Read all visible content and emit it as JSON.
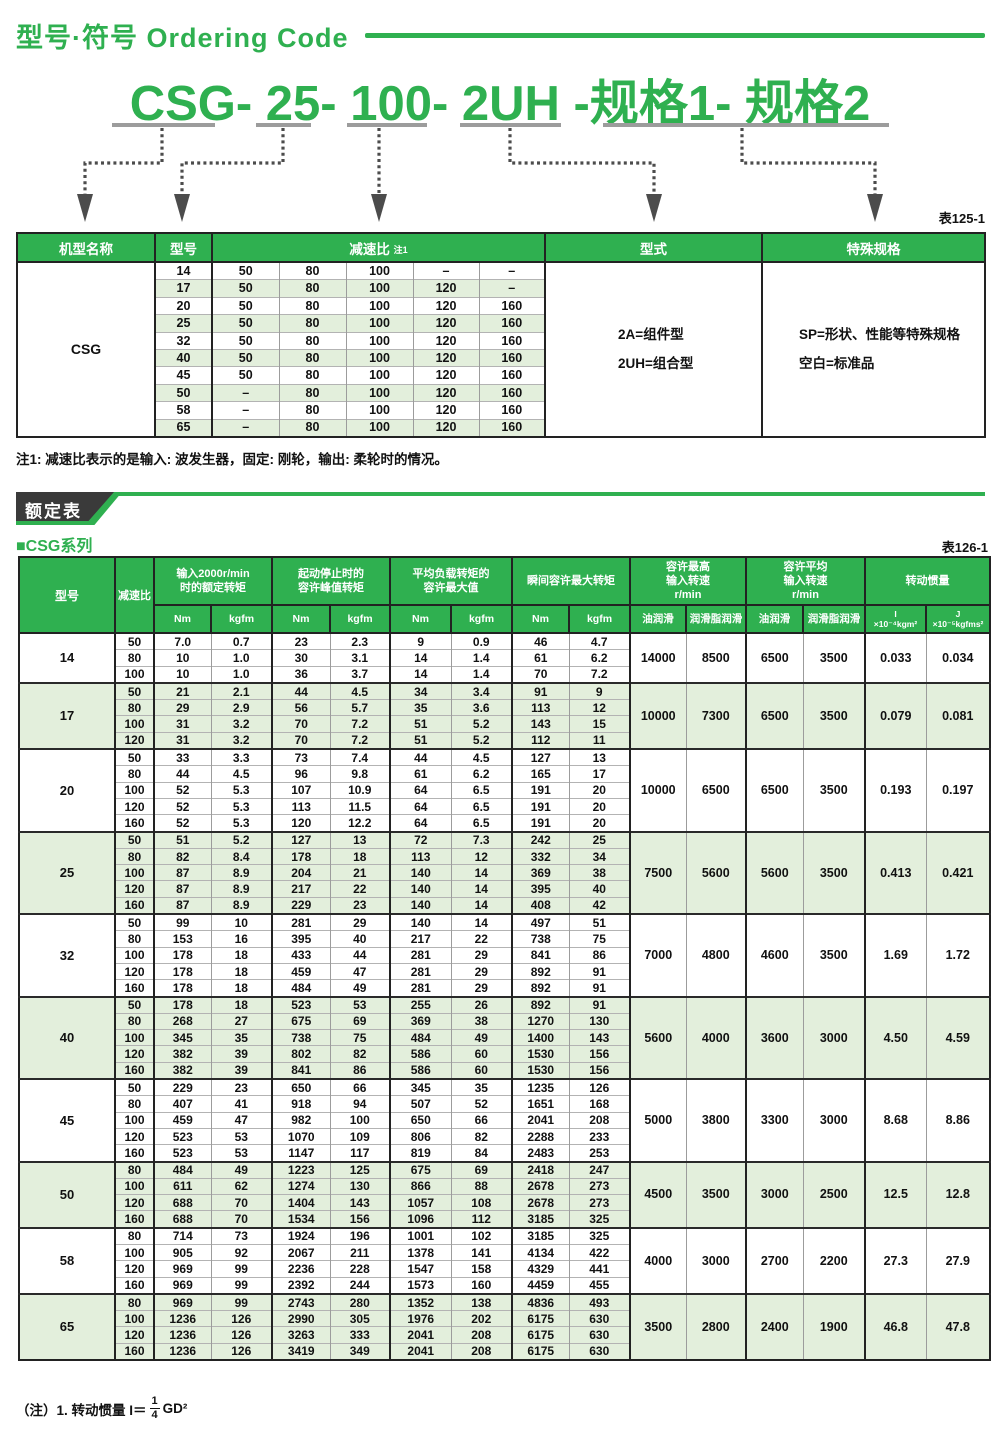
{
  "page": {
    "title_cn": "型号·符号",
    "title_en": "Ordering Code",
    "code": "CSG- 25- 100- 2UH -规格1- 规格2",
    "table1_label": "表125-1",
    "note1": "注1: 减速比表示的是输入: 波发生器，固定: 刚轮，输出: 柔轮时的情况。",
    "section_title": "额定表",
    "series_title": "■CSG系列",
    "table2_label": "表126-1"
  },
  "ordering_table": {
    "headers": {
      "maker": "机型名称",
      "model": "型号",
      "ratio": "减速比",
      "ratio_note": "注1",
      "type": "型式",
      "special": "特殊规格"
    },
    "maker": "CSG",
    "type_lines": [
      "2A=组件型",
      "2UH=组合型"
    ],
    "special_lines": [
      "SP=形状、性能等特殊规格",
      "空白=标准品"
    ],
    "rows": [
      {
        "model": "14",
        "ratios": [
          "50",
          "80",
          "100",
          "–",
          "–"
        ]
      },
      {
        "model": "17",
        "ratios": [
          "50",
          "80",
          "100",
          "120",
          "–"
        ]
      },
      {
        "model": "20",
        "ratios": [
          "50",
          "80",
          "100",
          "120",
          "160"
        ]
      },
      {
        "model": "25",
        "ratios": [
          "50",
          "80",
          "100",
          "120",
          "160"
        ]
      },
      {
        "model": "32",
        "ratios": [
          "50",
          "80",
          "100",
          "120",
          "160"
        ]
      },
      {
        "model": "40",
        "ratios": [
          "50",
          "80",
          "100",
          "120",
          "160"
        ]
      },
      {
        "model": "45",
        "ratios": [
          "50",
          "80",
          "100",
          "120",
          "160"
        ]
      },
      {
        "model": "50",
        "ratios": [
          "–",
          "80",
          "100",
          "120",
          "160"
        ]
      },
      {
        "model": "58",
        "ratios": [
          "–",
          "80",
          "100",
          "120",
          "160"
        ]
      },
      {
        "model": "65",
        "ratios": [
          "–",
          "80",
          "100",
          "120",
          "160"
        ]
      }
    ]
  },
  "rating_table": {
    "col_model": "型号",
    "col_ratio": "减速比",
    "groups": [
      {
        "title": "输入2000r/min\n时的额定转矩",
        "units": [
          "Nm",
          "kgfm"
        ]
      },
      {
        "title": "起动停止时的\n容许峰值转矩",
        "units": [
          "Nm",
          "kgfm"
        ]
      },
      {
        "title": "平均负载转矩的\n容许最大值",
        "units": [
          "Nm",
          "kgfm"
        ]
      },
      {
        "title": "瞬间容许最大转矩",
        "units": [
          "Nm",
          "kgfm"
        ]
      },
      {
        "title": "容许最高\n输入转速\nr/min",
        "units": [
          "油润滑",
          "润滑脂润滑"
        ]
      },
      {
        "title": "容许平均\n输入转速\nr/min",
        "units": [
          "油润滑",
          "润滑脂润滑"
        ]
      },
      {
        "title": "转动惯量",
        "units": [
          "I\n×10⁻⁴kgm²",
          "J\n×10⁻⁵kgfms²"
        ]
      }
    ],
    "blocks": [
      {
        "model": "14",
        "max_rpm": [
          "14000",
          "8500"
        ],
        "avg_rpm": [
          "6500",
          "3500"
        ],
        "inertia": [
          "0.033",
          "0.034"
        ],
        "rows": [
          [
            "50",
            "7.0",
            "0.7",
            "23",
            "2.3",
            "9",
            "0.9",
            "46",
            "4.7"
          ],
          [
            "80",
            "10",
            "1.0",
            "30",
            "3.1",
            "14",
            "1.4",
            "61",
            "6.2"
          ],
          [
            "100",
            "10",
            "1.0",
            "36",
            "3.7",
            "14",
            "1.4",
            "70",
            "7.2"
          ]
        ]
      },
      {
        "model": "17",
        "max_rpm": [
          "10000",
          "7300"
        ],
        "avg_rpm": [
          "6500",
          "3500"
        ],
        "inertia": [
          "0.079",
          "0.081"
        ],
        "rows": [
          [
            "50",
            "21",
            "2.1",
            "44",
            "4.5",
            "34",
            "3.4",
            "91",
            "9"
          ],
          [
            "80",
            "29",
            "2.9",
            "56",
            "5.7",
            "35",
            "3.6",
            "113",
            "12"
          ],
          [
            "100",
            "31",
            "3.2",
            "70",
            "7.2",
            "51",
            "5.2",
            "143",
            "15"
          ],
          [
            "120",
            "31",
            "3.2",
            "70",
            "7.2",
            "51",
            "5.2",
            "112",
            "11"
          ]
        ]
      },
      {
        "model": "20",
        "max_rpm": [
          "10000",
          "6500"
        ],
        "avg_rpm": [
          "6500",
          "3500"
        ],
        "inertia": [
          "0.193",
          "0.197"
        ],
        "rows": [
          [
            "50",
            "33",
            "3.3",
            "73",
            "7.4",
            "44",
            "4.5",
            "127",
            "13"
          ],
          [
            "80",
            "44",
            "4.5",
            "96",
            "9.8",
            "61",
            "6.2",
            "165",
            "17"
          ],
          [
            "100",
            "52",
            "5.3",
            "107",
            "10.9",
            "64",
            "6.5",
            "191",
            "20"
          ],
          [
            "120",
            "52",
            "5.3",
            "113",
            "11.5",
            "64",
            "6.5",
            "191",
            "20"
          ],
          [
            "160",
            "52",
            "5.3",
            "120",
            "12.2",
            "64",
            "6.5",
            "191",
            "20"
          ]
        ]
      },
      {
        "model": "25",
        "max_rpm": [
          "7500",
          "5600"
        ],
        "avg_rpm": [
          "5600",
          "3500"
        ],
        "inertia": [
          "0.413",
          "0.421"
        ],
        "rows": [
          [
            "50",
            "51",
            "5.2",
            "127",
            "13",
            "72",
            "7.3",
            "242",
            "25"
          ],
          [
            "80",
            "82",
            "8.4",
            "178",
            "18",
            "113",
            "12",
            "332",
            "34"
          ],
          [
            "100",
            "87",
            "8.9",
            "204",
            "21",
            "140",
            "14",
            "369",
            "38"
          ],
          [
            "120",
            "87",
            "8.9",
            "217",
            "22",
            "140",
            "14",
            "395",
            "40"
          ],
          [
            "160",
            "87",
            "8.9",
            "229",
            "23",
            "140",
            "14",
            "408",
            "42"
          ]
        ]
      },
      {
        "model": "32",
        "max_rpm": [
          "7000",
          "4800"
        ],
        "avg_rpm": [
          "4600",
          "3500"
        ],
        "inertia": [
          "1.69",
          "1.72"
        ],
        "rows": [
          [
            "50",
            "99",
            "10",
            "281",
            "29",
            "140",
            "14",
            "497",
            "51"
          ],
          [
            "80",
            "153",
            "16",
            "395",
            "40",
            "217",
            "22",
            "738",
            "75"
          ],
          [
            "100",
            "178",
            "18",
            "433",
            "44",
            "281",
            "29",
            "841",
            "86"
          ],
          [
            "120",
            "178",
            "18",
            "459",
            "47",
            "281",
            "29",
            "892",
            "91"
          ],
          [
            "160",
            "178",
            "18",
            "484",
            "49",
            "281",
            "29",
            "892",
            "91"
          ]
        ]
      },
      {
        "model": "40",
        "max_rpm": [
          "5600",
          "4000"
        ],
        "avg_rpm": [
          "3600",
          "3000"
        ],
        "inertia": [
          "4.50",
          "4.59"
        ],
        "rows": [
          [
            "50",
            "178",
            "18",
            "523",
            "53",
            "255",
            "26",
            "892",
            "91"
          ],
          [
            "80",
            "268",
            "27",
            "675",
            "69",
            "369",
            "38",
            "1270",
            "130"
          ],
          [
            "100",
            "345",
            "35",
            "738",
            "75",
            "484",
            "49",
            "1400",
            "143"
          ],
          [
            "120",
            "382",
            "39",
            "802",
            "82",
            "586",
            "60",
            "1530",
            "156"
          ],
          [
            "160",
            "382",
            "39",
            "841",
            "86",
            "586",
            "60",
            "1530",
            "156"
          ]
        ]
      },
      {
        "model": "45",
        "max_rpm": [
          "5000",
          "3800"
        ],
        "avg_rpm": [
          "3300",
          "3000"
        ],
        "inertia": [
          "8.68",
          "8.86"
        ],
        "rows": [
          [
            "50",
            "229",
            "23",
            "650",
            "66",
            "345",
            "35",
            "1235",
            "126"
          ],
          [
            "80",
            "407",
            "41",
            "918",
            "94",
            "507",
            "52",
            "1651",
            "168"
          ],
          [
            "100",
            "459",
            "47",
            "982",
            "100",
            "650",
            "66",
            "2041",
            "208"
          ],
          [
            "120",
            "523",
            "53",
            "1070",
            "109",
            "806",
            "82",
            "2288",
            "233"
          ],
          [
            "160",
            "523",
            "53",
            "1147",
            "117",
            "819",
            "84",
            "2483",
            "253"
          ]
        ]
      },
      {
        "model": "50",
        "max_rpm": [
          "4500",
          "3500"
        ],
        "avg_rpm": [
          "3000",
          "2500"
        ],
        "inertia": [
          "12.5",
          "12.8"
        ],
        "rows": [
          [
            "80",
            "484",
            "49",
            "1223",
            "125",
            "675",
            "69",
            "2418",
            "247"
          ],
          [
            "100",
            "611",
            "62",
            "1274",
            "130",
            "866",
            "88",
            "2678",
            "273"
          ],
          [
            "120",
            "688",
            "70",
            "1404",
            "143",
            "1057",
            "108",
            "2678",
            "273"
          ],
          [
            "160",
            "688",
            "70",
            "1534",
            "156",
            "1096",
            "112",
            "3185",
            "325"
          ]
        ]
      },
      {
        "model": "58",
        "max_rpm": [
          "4000",
          "3000"
        ],
        "avg_rpm": [
          "2700",
          "2200"
        ],
        "inertia": [
          "27.3",
          "27.9"
        ],
        "rows": [
          [
            "80",
            "714",
            "73",
            "1924",
            "196",
            "1001",
            "102",
            "3185",
            "325"
          ],
          [
            "100",
            "905",
            "92",
            "2067",
            "211",
            "1378",
            "141",
            "4134",
            "422"
          ],
          [
            "120",
            "969",
            "99",
            "2236",
            "228",
            "1547",
            "158",
            "4329",
            "441"
          ],
          [
            "160",
            "969",
            "99",
            "2392",
            "244",
            "1573",
            "160",
            "4459",
            "455"
          ]
        ]
      },
      {
        "model": "65",
        "max_rpm": [
          "3500",
          "2800"
        ],
        "avg_rpm": [
          "2400",
          "1900"
        ],
        "inertia": [
          "46.8",
          "47.8"
        ],
        "rows": [
          [
            "80",
            "969",
            "99",
            "2743",
            "280",
            "1352",
            "138",
            "4836",
            "493"
          ],
          [
            "100",
            "1236",
            "126",
            "2990",
            "305",
            "1976",
            "202",
            "6175",
            "630"
          ],
          [
            "120",
            "1236",
            "126",
            "3263",
            "333",
            "2041",
            "208",
            "6175",
            "630"
          ],
          [
            "160",
            "1236",
            "126",
            "3419",
            "349",
            "2041",
            "208",
            "6175",
            "630"
          ]
        ]
      }
    ]
  },
  "footnote": {
    "prefix": "（注）1. 转动惯量  I＝",
    "numerator": "1",
    "denominator": "4",
    "suffix": "GD²"
  },
  "colors": {
    "accent_green": "#2fb050",
    "row_shade_green": "#e3efdc",
    "banner_dark": "#3a3a3a"
  }
}
